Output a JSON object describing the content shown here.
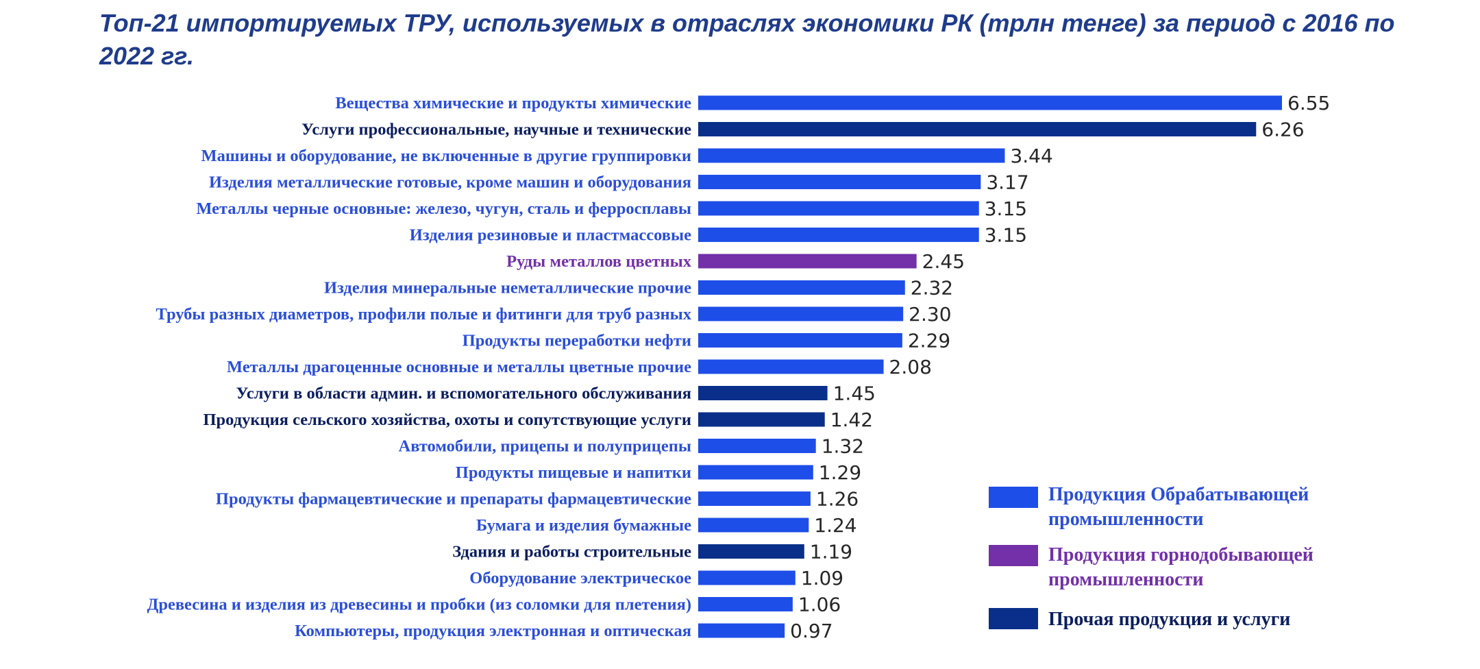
{
  "chart_data": {
    "type": "bar",
    "orientation": "horizontal",
    "title": "Топ-21 импортируемых ТРУ, используемых в отраслях экономики РК (трлн тенге) за период с 2016 по 2022 гг.",
    "xlim": [
      0,
      6.55
    ],
    "grid": false,
    "legend_position": "bottom-right",
    "groups": [
      {
        "key": "manufacturing",
        "label": "Продукция Обрабатывающей промышленности",
        "color": "#1e4ee8"
      },
      {
        "key": "mining",
        "label": "Продукция горнодобывающей промышленности",
        "color": "#7330a8"
      },
      {
        "key": "other",
        "label": "Прочая продукция и услуги",
        "color": "#0a2f8a"
      }
    ],
    "categories": [
      "Вещества химические и продукты химические",
      "Услуги профессиональные, научные и технические",
      "Машины и оборудование, не включенные в другие группировки",
      "Изделия металлические готовые, кроме машин и оборудования",
      "Металлы черные основные: железо, чугун, сталь и ферросплавы",
      "Изделия резиновые и пластмассовые",
      "Руды металлов цветных",
      "Изделия минеральные неметаллические прочие",
      "Трубы разных диаметров, профили полые и фитинги для труб разных",
      "Продукты переработки нефти",
      "Металлы драгоценные основные и металлы цветные прочие",
      "Услуги в области админ. и вспомогательного обслуживания",
      "Продукция сельского хозяйства, охоты и сопутствующие услуги",
      "Автомобили, прицепы и полуприцепы",
      "Продукты пищевые и напитки",
      "Продукты фармацевтические и препараты фармацевтические",
      "Бумага и изделия бумажные",
      "Здания и работы строительные",
      "Оборудование электрическое",
      "Древесина и изделия из древесины и пробки (из соломки для плетения)",
      "Компьютеры, продукция электронная и оптическая"
    ],
    "values": [
      6.55,
      6.26,
      3.44,
      3.17,
      3.15,
      3.15,
      2.45,
      2.32,
      2.3,
      2.29,
      2.08,
      1.45,
      1.42,
      1.32,
      1.29,
      1.26,
      1.24,
      1.19,
      1.09,
      1.06,
      0.97
    ],
    "value_labels": [
      "6.55",
      "6.26",
      "3.44",
      "3.17",
      "3.15",
      "3.15",
      "2.45",
      "2.32",
      "2.30",
      "2.29",
      "2.08",
      "1.45",
      "1.42",
      "1.32",
      "1.29",
      "1.26",
      "1.24",
      "1.19",
      "1.09",
      "1.06",
      "0.97"
    ],
    "category_groups": [
      "manufacturing",
      "other",
      "manufacturing",
      "manufacturing",
      "manufacturing",
      "manufacturing",
      "mining",
      "manufacturing",
      "manufacturing",
      "manufacturing",
      "manufacturing",
      "other",
      "other",
      "manufacturing",
      "manufacturing",
      "manufacturing",
      "manufacturing",
      "other",
      "manufacturing",
      "manufacturing",
      "manufacturing"
    ]
  }
}
